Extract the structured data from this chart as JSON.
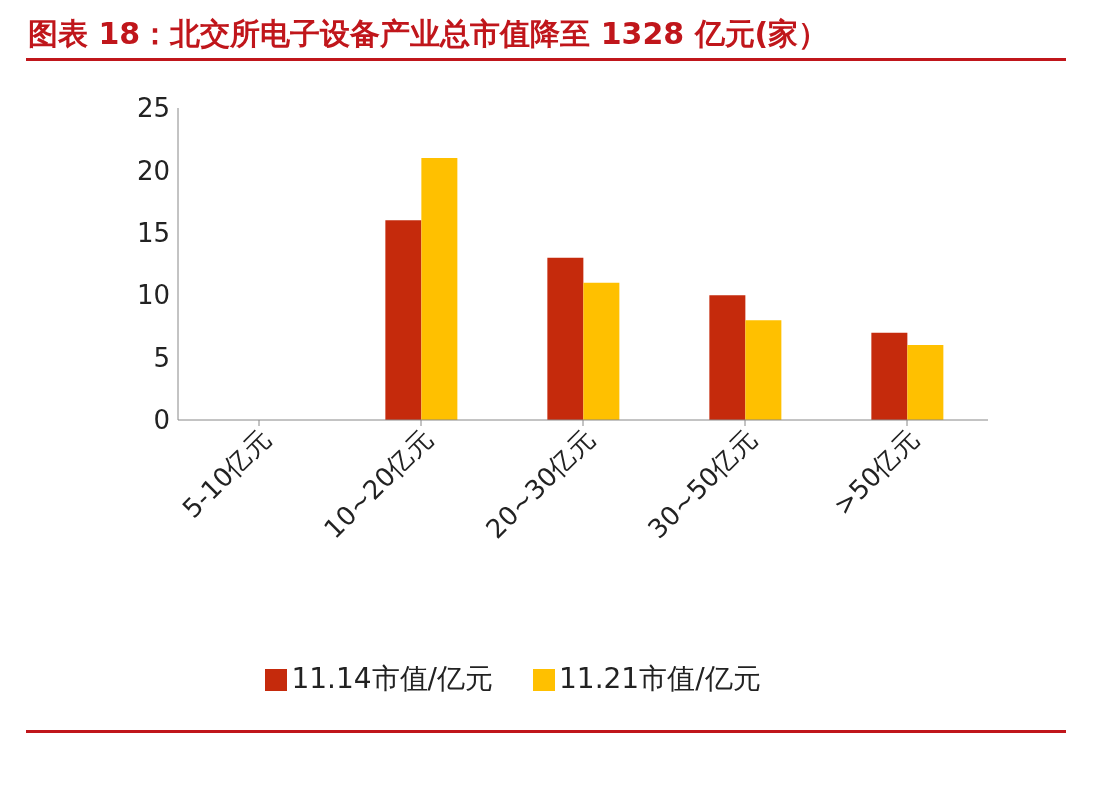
{
  "chart_data": {
    "type": "bar",
    "title": "图表 18：北交所电子设备产业总市值降至 1328 亿元(家）",
    "categories": [
      "5-10亿元",
      "10~20亿元",
      "20~30亿元",
      "30~50亿元",
      ">50亿元"
    ],
    "series": [
      {
        "name": "11.14市值/亿元",
        "color": "#c52a0c",
        "values": [
          0,
          16,
          13,
          10,
          7
        ]
      },
      {
        "name": "11.21市值/亿元",
        "color": "#ffc000",
        "values": [
          0,
          21,
          11,
          8,
          6
        ]
      }
    ],
    "ylim": [
      0,
      25
    ],
    "yticks": [
      0,
      5,
      10,
      15,
      20,
      25
    ],
    "grid": false,
    "legend": "bottom"
  }
}
